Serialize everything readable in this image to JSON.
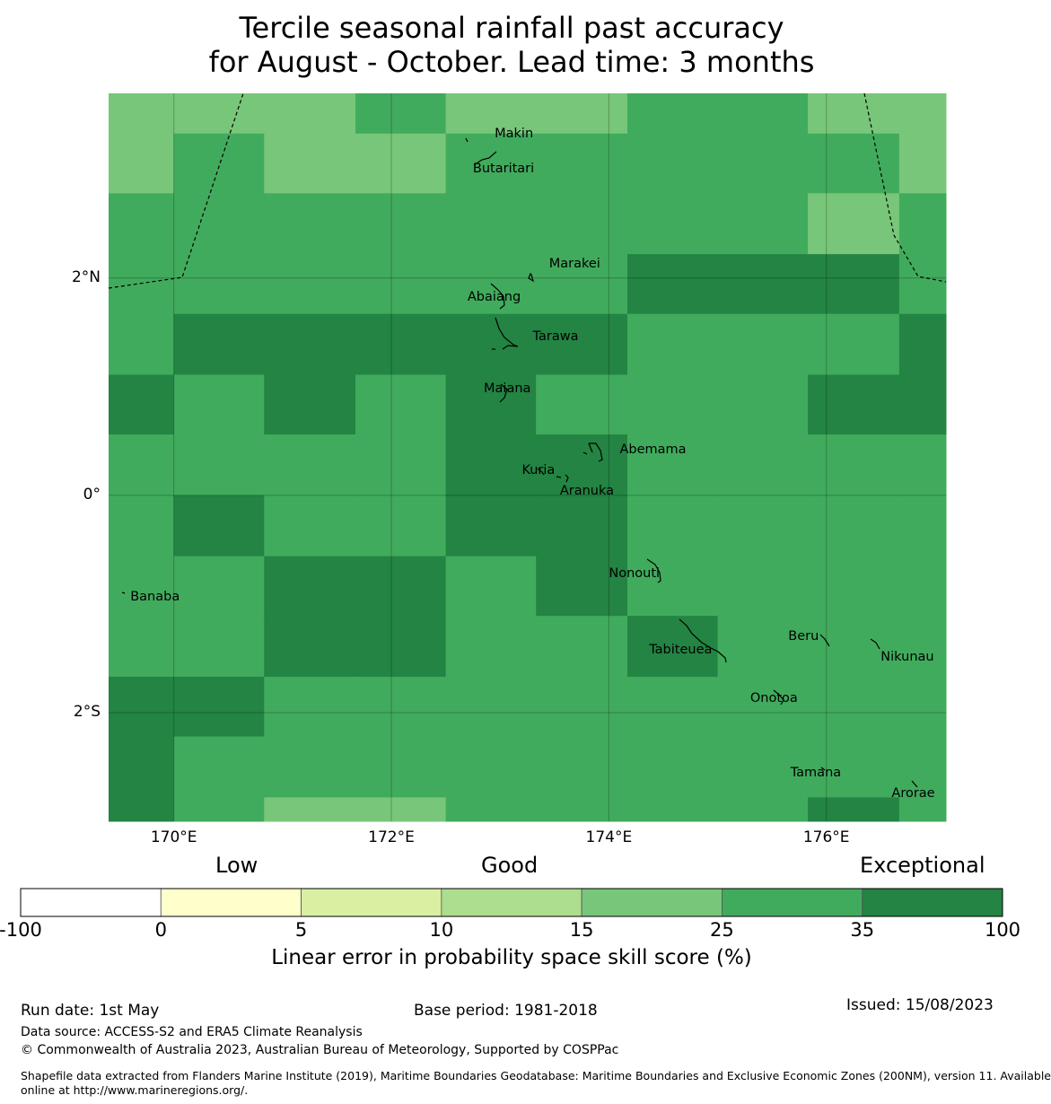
{
  "title_line1": "Tercile seasonal rainfall past accuracy",
  "title_line2": "for August - October. Lead time: 3 months",
  "map": {
    "lon_range": [
      169.4,
      177.1
    ],
    "lat_range": [
      -3.0,
      3.7
    ],
    "lon_ticks": [
      {
        "value": 170,
        "label": "170°E"
      },
      {
        "value": 172,
        "label": "172°E"
      },
      {
        "value": 174,
        "label": "174°E"
      },
      {
        "value": 176,
        "label": "176°E"
      }
    ],
    "lat_ticks": [
      {
        "value": 2,
        "label": "2°N"
      },
      {
        "value": 0,
        "label": "0°"
      },
      {
        "value": -2,
        "label": "2°S"
      }
    ],
    "grid_columns_lon": [
      169.4,
      170.0,
      170.83,
      171.67,
      172.5,
      173.33,
      174.17,
      175.0,
      175.83,
      176.67,
      177.1
    ],
    "grid_rows_lat": [
      3.7,
      3.33,
      2.78,
      2.22,
      1.67,
      1.11,
      0.56,
      0.0,
      -0.56,
      -1.11,
      -1.67,
      -2.22,
      -2.78,
      -3.0
    ],
    "cell_classes": [
      [
        4,
        4,
        4,
        5,
        4,
        4,
        5,
        5,
        4,
        4
      ],
      [
        4,
        5,
        4,
        4,
        5,
        5,
        5,
        5,
        5,
        4
      ],
      [
        5,
        5,
        5,
        5,
        5,
        5,
        5,
        5,
        4,
        5
      ],
      [
        5,
        5,
        5,
        5,
        5,
        5,
        6,
        6,
        6,
        5
      ],
      [
        5,
        6,
        6,
        6,
        6,
        6,
        5,
        5,
        5,
        6
      ],
      [
        6,
        5,
        6,
        5,
        6,
        5,
        5,
        5,
        6,
        6
      ],
      [
        5,
        5,
        5,
        5,
        6,
        6,
        5,
        5,
        5,
        5
      ],
      [
        5,
        6,
        5,
        5,
        6,
        6,
        5,
        5,
        5,
        5
      ],
      [
        5,
        5,
        6,
        6,
        5,
        6,
        5,
        5,
        5,
        5
      ],
      [
        5,
        5,
        6,
        6,
        5,
        5,
        6,
        5,
        5,
        5
      ],
      [
        6,
        6,
        5,
        5,
        5,
        5,
        5,
        5,
        5,
        5
      ],
      [
        6,
        5,
        5,
        5,
        5,
        5,
        5,
        5,
        5,
        5
      ],
      [
        6,
        5,
        4,
        4,
        5,
        5,
        5,
        5,
        6,
        5
      ]
    ],
    "places": [
      {
        "name": "Makin",
        "lon": 172.95,
        "lat": 3.32
      },
      {
        "name": "Butaritari",
        "lon": 172.75,
        "lat": 3.0
      },
      {
        "name": "Marakei",
        "lon": 173.45,
        "lat": 2.12
      },
      {
        "name": "Abaiang",
        "lon": 172.7,
        "lat": 1.82
      },
      {
        "name": "Tarawa",
        "lon": 173.3,
        "lat": 1.45
      },
      {
        "name": "Maiana",
        "lon": 172.85,
        "lat": 0.97
      },
      {
        "name": "Abemama",
        "lon": 174.1,
        "lat": 0.41
      },
      {
        "name": "Kuria",
        "lon": 173.2,
        "lat": 0.22
      },
      {
        "name": "Aranuka",
        "lon": 173.55,
        "lat": 0.03
      },
      {
        "name": "Nonouti",
        "lon": 174.0,
        "lat": -0.73
      },
      {
        "name": "Banaba",
        "lon": 169.6,
        "lat": -0.94
      },
      {
        "name": "Tabiteuea",
        "lon": 174.37,
        "lat": -1.43
      },
      {
        "name": "Beru",
        "lon": 175.65,
        "lat": -1.31
      },
      {
        "name": "Nikunau",
        "lon": 176.5,
        "lat": -1.5
      },
      {
        "name": "Onotoa",
        "lon": 175.3,
        "lat": -1.88
      },
      {
        "name": "Tamana",
        "lon": 175.67,
        "lat": -2.56
      },
      {
        "name": "Arorae",
        "lon": 176.6,
        "lat": -2.75
      }
    ]
  },
  "colorbar": {
    "category_labels": [
      "Low",
      "Good",
      "Exceptional"
    ],
    "bins": [
      {
        "from": -100,
        "to": 0,
        "color": "#ffffff"
      },
      {
        "from": 0,
        "to": 5,
        "color": "#ffffcc"
      },
      {
        "from": 5,
        "to": 10,
        "color": "#d9f0a3"
      },
      {
        "from": 10,
        "to": 15,
        "color": "#addd8e"
      },
      {
        "from": 15,
        "to": 25,
        "color": "#78c679"
      },
      {
        "from": 25,
        "to": 35,
        "color": "#41ab5d"
      },
      {
        "from": 35,
        "to": 100,
        "color": "#238443"
      }
    ],
    "tick_labels": [
      "-100",
      "0",
      "5",
      "10",
      "15",
      "25",
      "35",
      "100"
    ],
    "label": "Linear error in probability space skill score (%)"
  },
  "footer": {
    "run_date": "Run date: 1st May",
    "base_period": "Base period: 1981-2018",
    "issued": "Issued: 15/08/2023",
    "data_source": "Data source: ACCESS-S2 and ERA5 Climate Reanalysis",
    "copyright": "© Commonwealth of Australia 2023, Australian Bureau of Meteorology, Supported by COSPPac",
    "shapefile_line1": "Shapefile data extracted from Flanders Marine Institute (2019), Maritime Boundaries Geodatabase: Maritime Boundaries and Exclusive Economic Zones (200NM), version 11. Available",
    "shapefile_line2": "online at http://www.marineregions.org/."
  }
}
